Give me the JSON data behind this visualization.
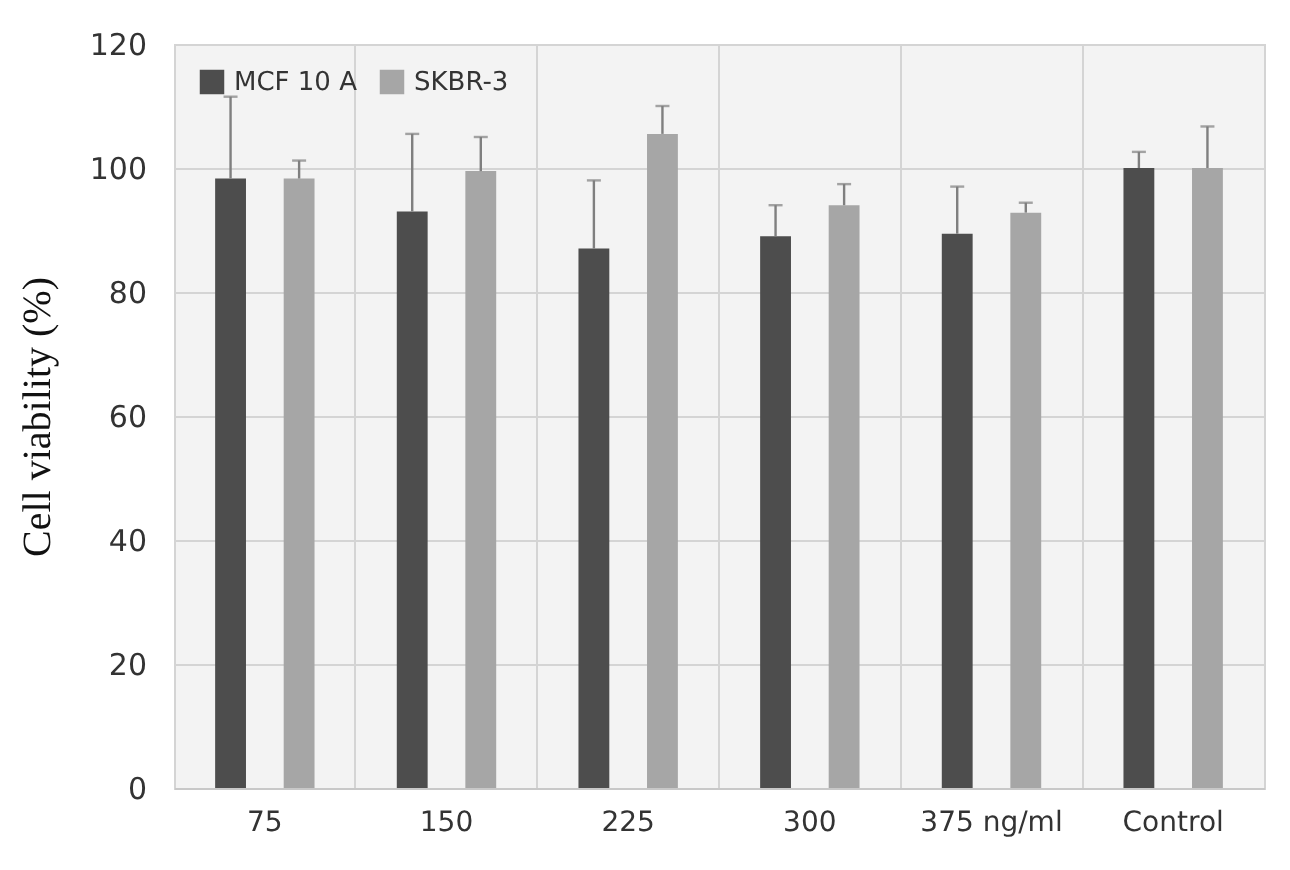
{
  "chart_data": {
    "type": "bar",
    "ylabel": "Cell viability (%)",
    "categories": [
      "75",
      "150",
      "225",
      "300",
      "375 ng/ml",
      "Control"
    ],
    "series": [
      {
        "name": "MCF 10 A",
        "color": "#4d4d4d",
        "values": [
          98.3,
          93,
          87,
          89,
          89.4,
          100
        ],
        "errors": [
          [
            98.3,
            111.5
          ],
          [
            93,
            105.5
          ],
          [
            87,
            98
          ],
          [
            89,
            94
          ],
          [
            89.4,
            97
          ],
          [
            100,
            102.6
          ]
        ]
      },
      {
        "name": "SKBR-3",
        "color": "#a6a6a6",
        "values": [
          98.3,
          99.5,
          105.5,
          94,
          92.8,
          100
        ],
        "errors": [
          [
            98.3,
            101.2
          ],
          [
            99.5,
            105
          ],
          [
            105.5,
            110
          ],
          [
            94,
            97.4
          ],
          [
            92.8,
            94.4
          ],
          [
            100,
            106.7
          ]
        ]
      }
    ],
    "ylim": [
      0,
      120
    ],
    "yticks": [
      0,
      20,
      40,
      60,
      80,
      100,
      120
    ],
    "grid": true,
    "legend": "top left"
  }
}
